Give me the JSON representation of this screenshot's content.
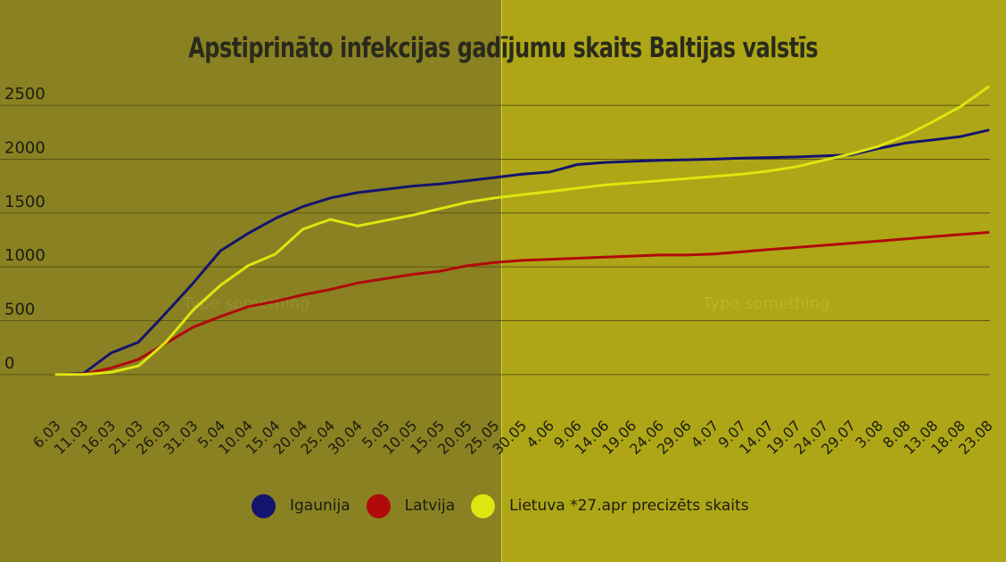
{
  "panels": {
    "left_placeholder": "Type something",
    "right_placeholder": "Type something"
  },
  "chart_data": {
    "type": "line",
    "title": "Apstiprināto infekcijas gadījumu skaits Baltijas valstīs",
    "xlabel": "",
    "ylabel": "",
    "ylim": [
      -250,
      2650
    ],
    "yticks": [
      0,
      500,
      1000,
      1500,
      2000,
      2500
    ],
    "ytick_labels": [
      "0",
      "500",
      "1000",
      "1500",
      "2000",
      "2500"
    ],
    "grid": true,
    "legend_position": "bottom",
    "x": [
      "6.03",
      "11.03",
      "16.03",
      "21.03",
      "26.03",
      "31.03",
      "5.04",
      "10.04",
      "15.04",
      "20.04",
      "25.04",
      "30.04",
      "5.05",
      "10.05",
      "15.05",
      "20.05",
      "25.05",
      "30.05",
      "4.06",
      "9.06",
      "14.06",
      "19.06",
      "24.06",
      "29.06",
      "4.07",
      "9.07",
      "14.07",
      "19.07",
      "24.07",
      "29.07",
      "3.08",
      "8.08",
      "13.08",
      "18.08",
      "23.08"
    ],
    "series": [
      {
        "name": "Igaunija",
        "color": "#14146e",
        "values": [
          0,
          10,
          200,
          300,
          570,
          850,
          1150,
          1310,
          1450,
          1560,
          1640,
          1690,
          1720,
          1750,
          1770,
          1800,
          1830,
          1860,
          1880,
          1950,
          1970,
          1980,
          1990,
          1995,
          2000,
          2010,
          2015,
          2020,
          2030,
          2040,
          2100,
          2150,
          2180,
          2210,
          2270
        ]
      },
      {
        "name": "Latvija",
        "color": "#b00a0a",
        "values": [
          0,
          5,
          60,
          140,
          290,
          440,
          540,
          630,
          680,
          740,
          790,
          850,
          890,
          930,
          960,
          1010,
          1040,
          1060,
          1070,
          1080,
          1090,
          1100,
          1110,
          1110,
          1120,
          1140,
          1160,
          1180,
          1200,
          1220,
          1240,
          1260,
          1280,
          1300,
          1320
        ]
      },
      {
        "name": "Lietuva *27.apr precizēts skaits",
        "color": "#dce610",
        "values": [
          0,
          0,
          20,
          80,
          300,
          600,
          830,
          1010,
          1120,
          1350,
          1440,
          1380,
          1430,
          1480,
          1540,
          1600,
          1640,
          1670,
          1700,
          1730,
          1760,
          1780,
          1800,
          1820,
          1840,
          1860,
          1890,
          1930,
          1990,
          2050,
          2120,
          2220,
          2350,
          2490,
          2670
        ]
      }
    ]
  }
}
